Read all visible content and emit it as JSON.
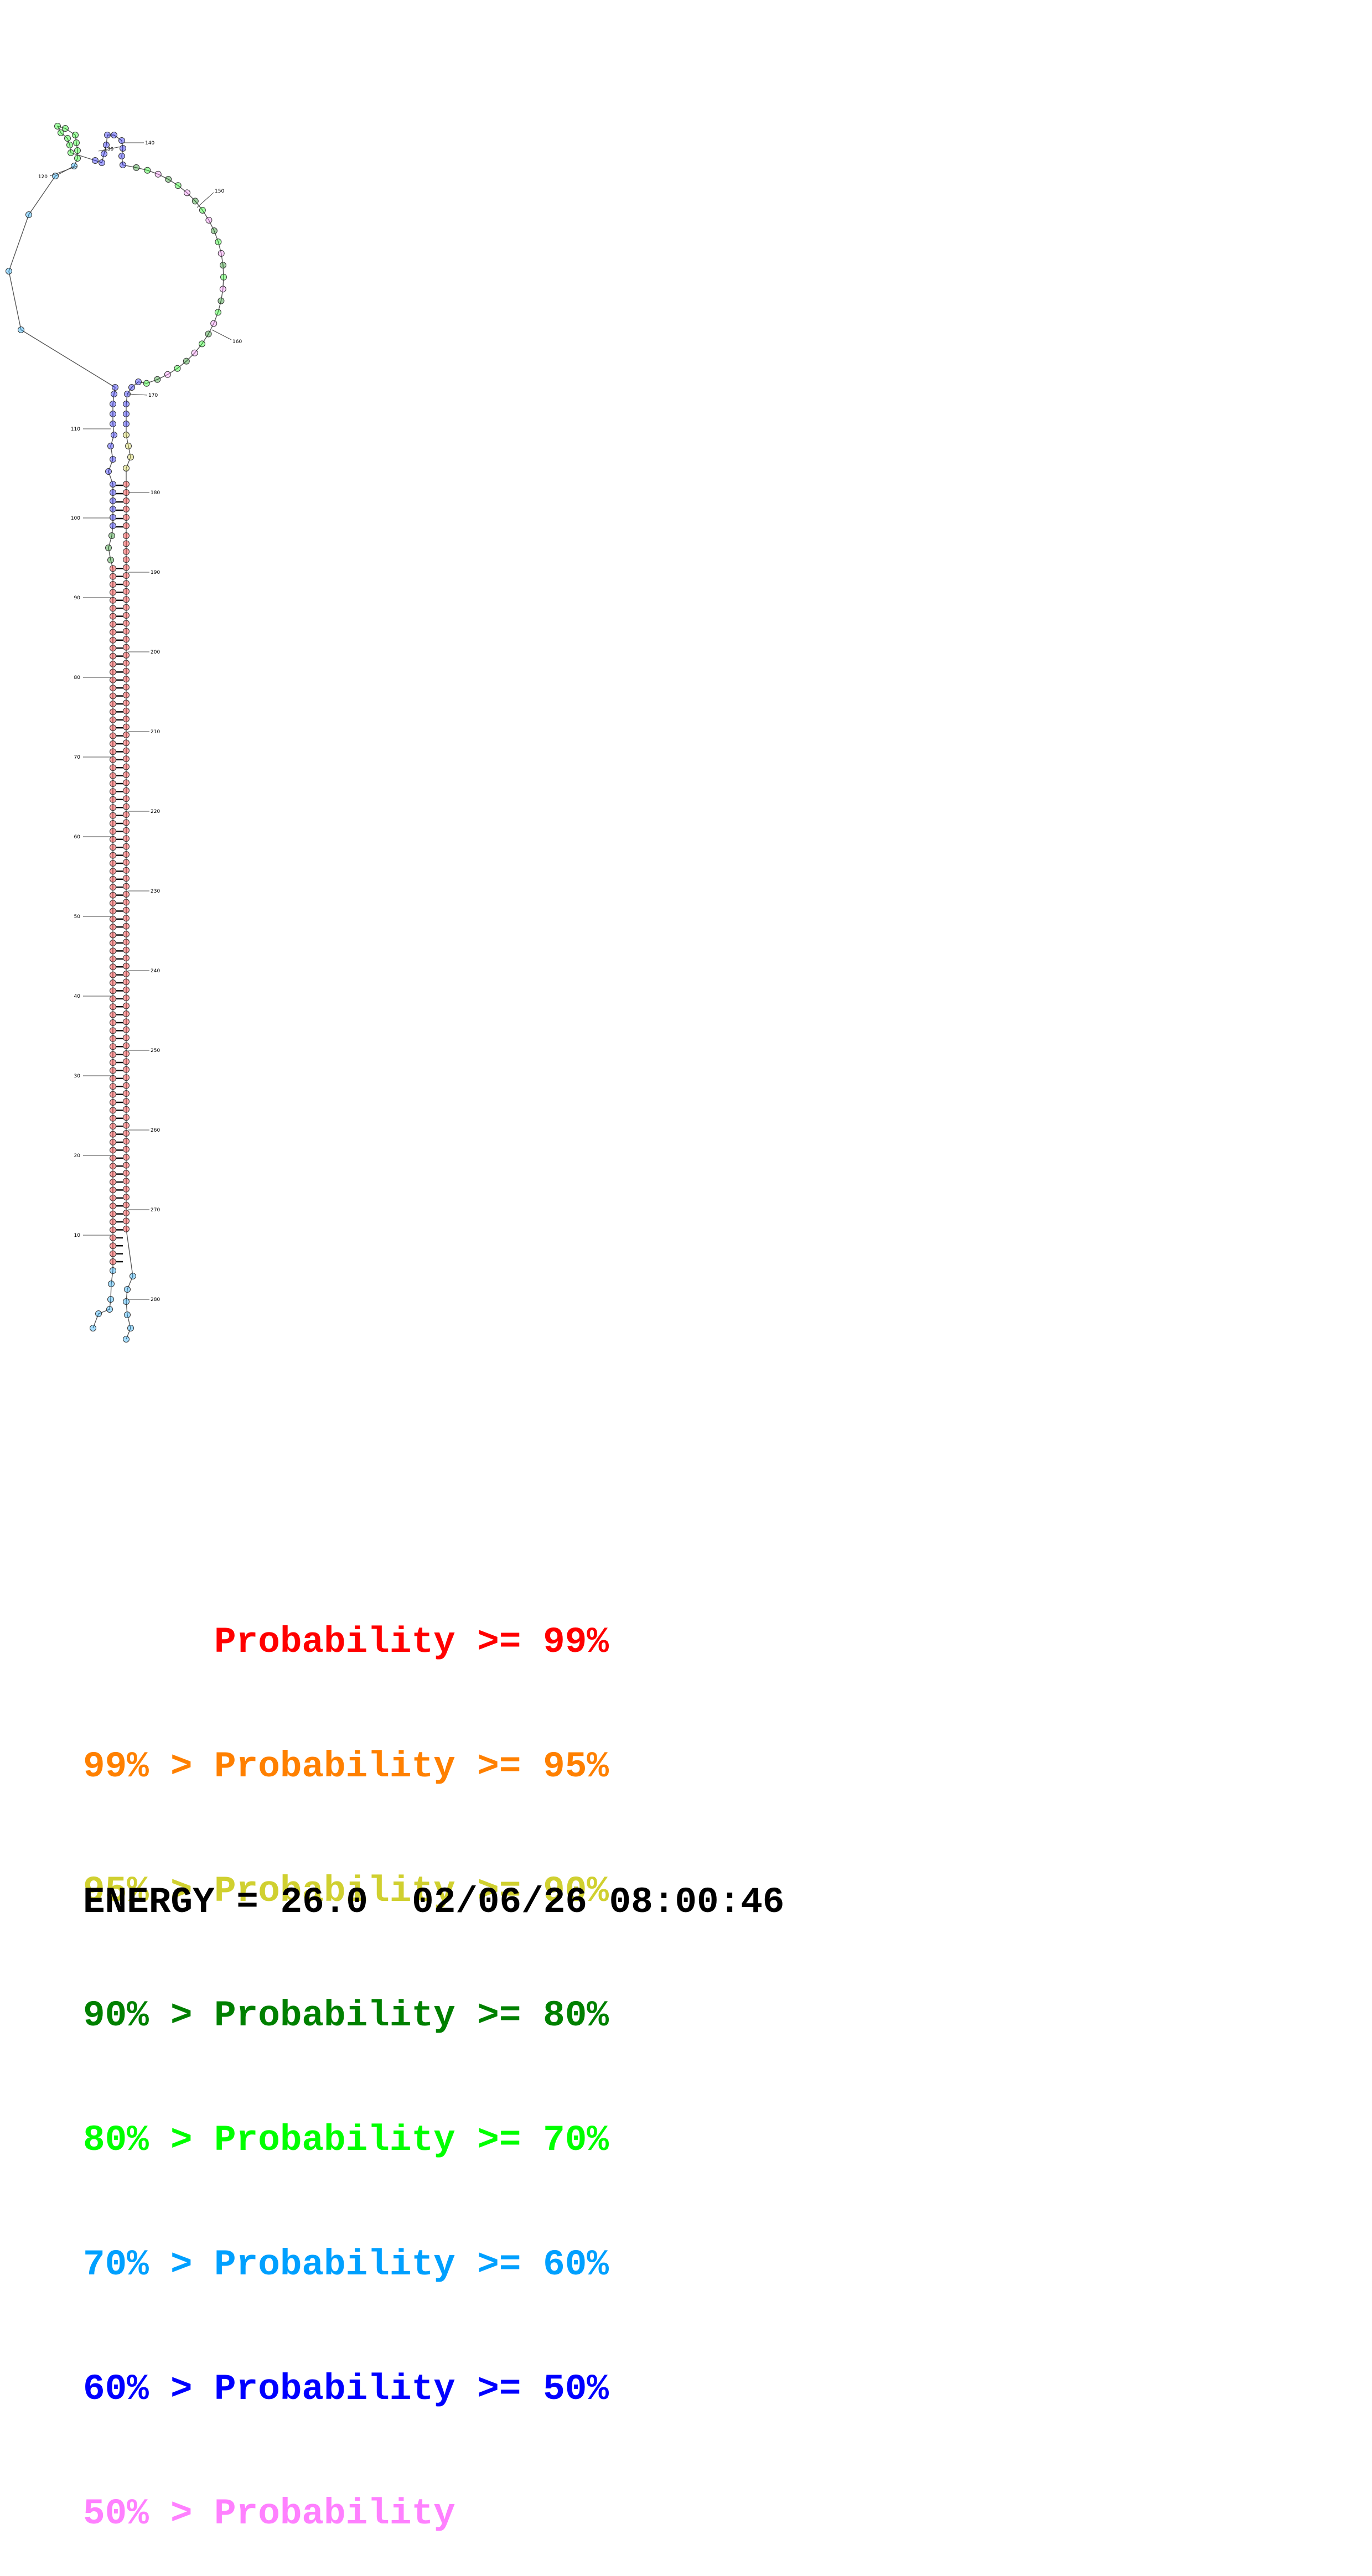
{
  "legend": [
    {
      "lower": "",
      "label": "Probability",
      "upper": ">= 99%",
      "color": "#ff0000"
    },
    {
      "lower": "99%",
      "label": "Probability",
      "upper": ">= 95%",
      "color": "#ff8000"
    },
    {
      "lower": "95%",
      "label": "Probability",
      "upper": ">= 90%",
      "color": "#d0d030"
    },
    {
      "lower": "90%",
      "label": "Probability",
      "upper": ">= 80%",
      "color": "#008000"
    },
    {
      "lower": "80%",
      "label": "Probability",
      "upper": ">= 70%",
      "color": "#00ff00"
    },
    {
      "lower": "70%",
      "label": "Probability",
      "upper": ">= 60%",
      "color": "#00a0ff"
    },
    {
      "lower": "60%",
      "label": "Probability",
      "upper": ">= 50%",
      "color": "#0000ff"
    },
    {
      "lower": "50%",
      "label": "Probability",
      "upper": "",
      "color": "#ff80ff"
    }
  ],
  "energy_line": "ENERGY = 26.0  02/06/26 08:00:46",
  "structure": {
    "nucleotide_count": 286,
    "left_ticks": [
      "10",
      "20",
      "30",
      "40",
      "50",
      "60",
      "70",
      "80",
      "90",
      "100",
      "110",
      "120"
    ],
    "right_ticks": [
      "130",
      "140",
      "150",
      "160",
      "170",
      "180",
      "190",
      "200",
      "210",
      "220",
      "230",
      "240",
      "250",
      "260",
      "270",
      "280"
    ]
  }
}
